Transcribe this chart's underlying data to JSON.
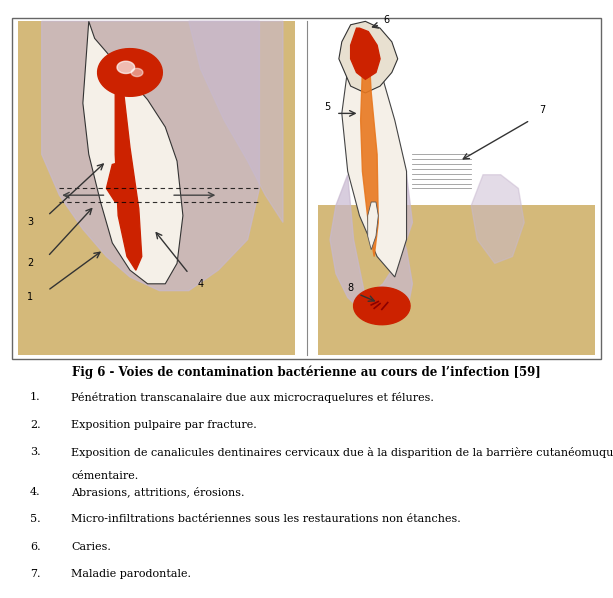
{
  "title": "Fig 6 - Voies de contamination bactérienne au cours de l’infection [59]",
  "title_bold": true,
  "title_fontsize": 8.5,
  "caption_fontsize": 8.0,
  "items": [
    "Pénétration transcanalaire due aux microcraquelures et félures.",
    "Exposition pulpaire par fracture.",
    "Exposition de canalicules dentinaires cervicaux due à la disparition de la barrière cutanéomuqueuse\ncémentaire.",
    "Abrasions, attritions, érosions.",
    "Micro-infiltrations bactériennes sous les restaurations non étanches.",
    "Caries.",
    "Maladie parodontale."
  ],
  "fig_background": "#ffffff",
  "border_color": "#888888",
  "image_box_color": "#f5f5f5",
  "left_panel_bg": "#e8d5a0",
  "right_panel_bg": "#e8d5a0",
  "figure_width": 6.13,
  "figure_height": 5.98
}
